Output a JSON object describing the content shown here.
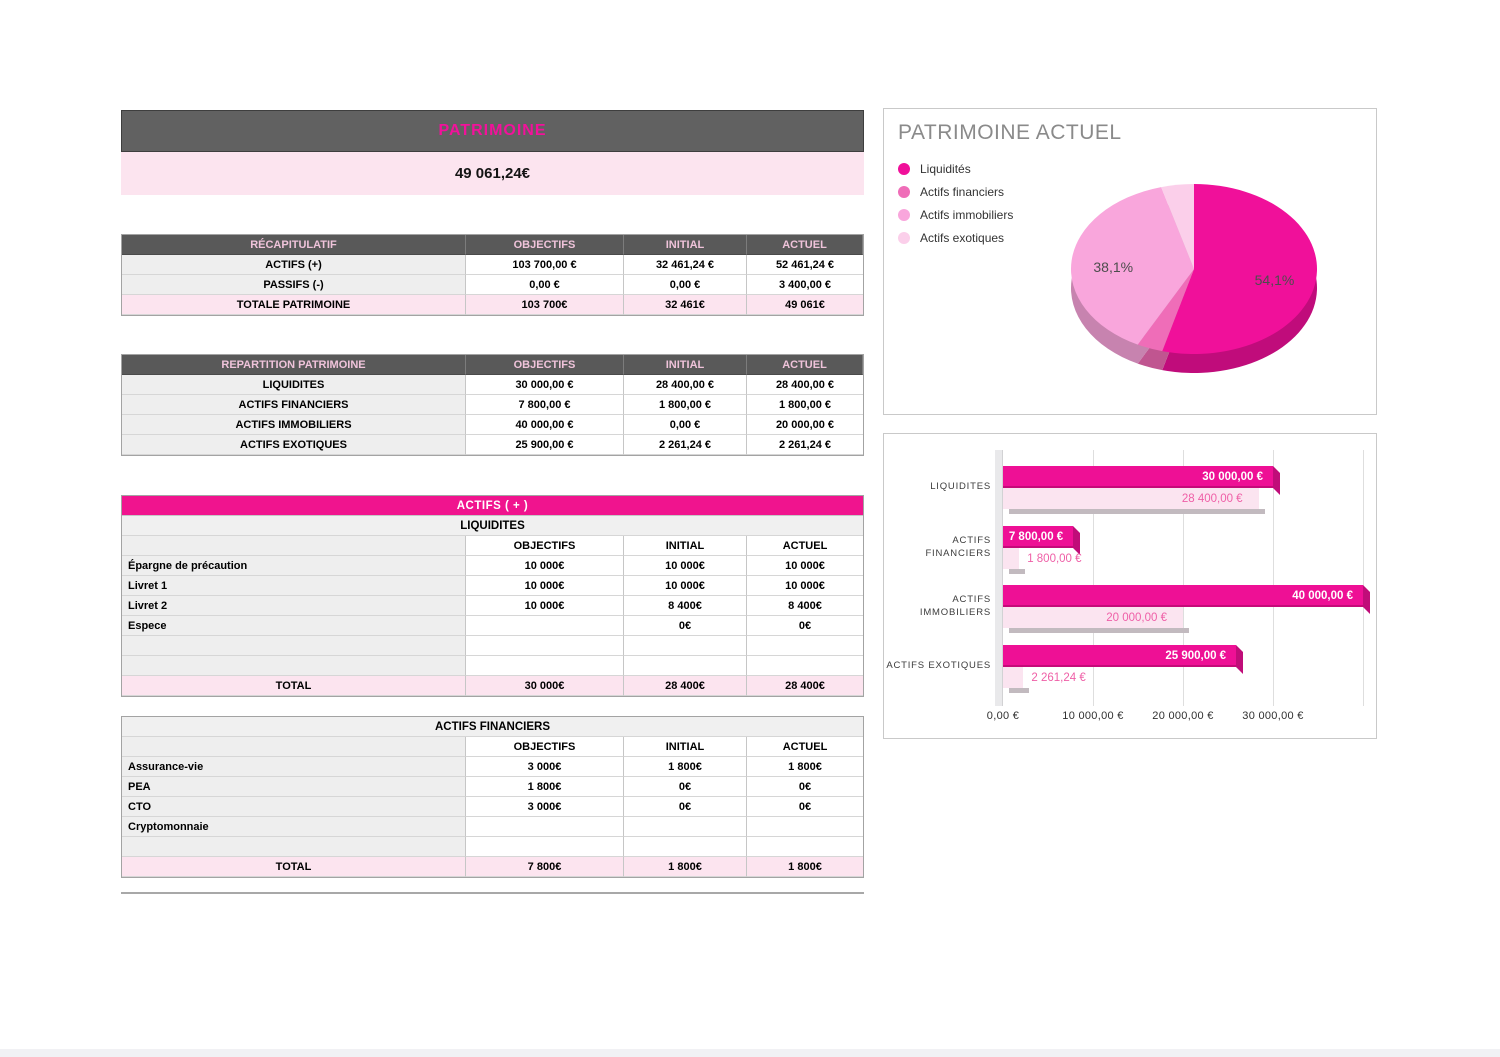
{
  "banner": {
    "title": "PATRIMOINE",
    "total": "49 061,24€"
  },
  "tables": {
    "recap": {
      "rows": [
        {
          "type": "header",
          "cells": [
            "RÉCAPITULATIF",
            "OBJECTIFS",
            "INITIAL",
            "ACTUEL"
          ]
        },
        {
          "type": "data",
          "cells": [
            "ACTIFS (+)",
            "103 700,00 €",
            "32 461,24 €",
            "52 461,24 €"
          ]
        },
        {
          "type": "data",
          "cells": [
            "PASSIFS (-)",
            "0,00 €",
            "0,00 €",
            "3 400,00 €"
          ]
        },
        {
          "type": "total",
          "cells": [
            "TOTALE PATRIMOINE",
            "103 700€",
            "32 461€",
            "49 061€"
          ]
        }
      ]
    },
    "repartition": {
      "rows": [
        {
          "type": "header",
          "cells": [
            "REPARTITION PATRIMOINE",
            "OBJECTIFS",
            "INITIAL",
            "ACTUEL"
          ]
        },
        {
          "type": "data",
          "cells": [
            "LIQUIDITES",
            "30 000,00 €",
            "28 400,00 €",
            "28 400,00 €"
          ]
        },
        {
          "type": "data",
          "cells": [
            "ACTIFS FINANCIERS",
            "7 800,00 €",
            "1 800,00 €",
            "1 800,00 €"
          ]
        },
        {
          "type": "data",
          "cells": [
            "ACTIFS IMMOBILIERS",
            "40 000,00 €",
            "0,00 €",
            "20 000,00 €"
          ]
        },
        {
          "type": "data",
          "cells": [
            "ACTIFS EXOTIQUES",
            "25 900,00 €",
            "2 261,24 €",
            "2 261,24 €"
          ]
        }
      ]
    },
    "actifs_plus": {
      "rows": [
        {
          "type": "title",
          "text": "ACTIFS ( + )"
        },
        {
          "type": "subtitle",
          "text": "LIQUIDITES"
        },
        {
          "type": "colheader",
          "cells": [
            "",
            "OBJECTIFS",
            "INITIAL",
            "ACTUEL"
          ]
        },
        {
          "type": "data",
          "cells": [
            "Épargne de précaution",
            "10 000€",
            "10 000€",
            "10 000€"
          ]
        },
        {
          "type": "data",
          "cells": [
            "Livret 1",
            "10 000€",
            "10 000€",
            "10 000€"
          ]
        },
        {
          "type": "data",
          "cells": [
            "Livret 2",
            "10 000€",
            "8 400€",
            "8 400€"
          ]
        },
        {
          "type": "data",
          "cells": [
            "Espece",
            "",
            "0€",
            "0€"
          ]
        },
        {
          "type": "data",
          "cells": [
            "",
            "",
            "",
            ""
          ]
        },
        {
          "type": "data",
          "cells": [
            "",
            "",
            "",
            ""
          ]
        },
        {
          "type": "total",
          "cells": [
            "TOTAL",
            "30 000€",
            "28 400€",
            "28 400€"
          ]
        }
      ]
    },
    "actifs_financiers": {
      "rows": [
        {
          "type": "subtitle",
          "text": "ACTIFS FINANCIERS"
        },
        {
          "type": "colheader",
          "cells": [
            "",
            "OBJECTIFS",
            "INITIAL",
            "ACTUEL"
          ]
        },
        {
          "type": "data",
          "cells": [
            "Assurance-vie",
            "3 000€",
            "1 800€",
            "1 800€"
          ]
        },
        {
          "type": "data",
          "cells": [
            "PEA",
            "1 800€",
            "0€",
            "0€"
          ]
        },
        {
          "type": "data",
          "cells": [
            "CTO",
            "3 000€",
            "0€",
            "0€"
          ]
        },
        {
          "type": "data",
          "cells": [
            "Cryptomonnaie",
            "",
            "",
            ""
          ]
        },
        {
          "type": "data",
          "cells": [
            "",
            "",
            "",
            ""
          ]
        },
        {
          "type": "total",
          "cells": [
            "TOTAL",
            "7 800€",
            "1 800€",
            "1 800€"
          ]
        }
      ]
    }
  },
  "chart_data": [
    {
      "type": "pie",
      "title": "PATRIMOINE ACTUEL",
      "legend": [
        "Liquidités",
        "Actifs financiers",
        "Actifs immobiliers",
        "Actifs exotiques"
      ],
      "slices": [
        {
          "label": "Liquidités",
          "pct": 54.1,
          "display": "54,1%"
        },
        {
          "label": "Actifs financiers",
          "pct": 3.4,
          "display": ""
        },
        {
          "label": "Actifs immobiliers",
          "pct": 38.1,
          "display": "38,1%"
        },
        {
          "label": "Actifs exotiques",
          "pct": 4.3,
          "display": ""
        }
      ],
      "colors": [
        "#F0109A",
        "#EF6DB8",
        "#F9A6DC",
        "#FBCFEA"
      ],
      "rim_colors": [
        "#C00C7B",
        "#C05590",
        "#C783AF",
        "#C9A2BB"
      ],
      "legend_position": "left"
    },
    {
      "type": "bar",
      "orientation": "horizontal",
      "categories": [
        "LIQUIDITES",
        "ACTIFS FINANCIERS",
        "ACTIFS IMMOBILIERS",
        "ACTIFS EXOTIQUES"
      ],
      "series": [
        {
          "color": "#EE1095",
          "values": [
            30000,
            7800,
            40000,
            25900
          ],
          "labels": [
            "30 000,00 €",
            "7 800,00 €",
            "40 000,00 €",
            "25 900,00 €"
          ]
        },
        {
          "color": "#FBE4F0",
          "values": [
            28400,
            1800,
            20000,
            2261.24
          ],
          "labels": [
            "28 400,00 €",
            "1 800,00 €",
            "20 000,00 €",
            "2 261,24 €"
          ]
        }
      ],
      "x_ticks": [
        "0,00 €",
        "10 000,00 €",
        "20 000,00 €",
        "30 000,00 €"
      ],
      "xlim": [
        0,
        40000
      ],
      "grid": true
    }
  ],
  "colors": {
    "accent_magenta": "#F0148E",
    "header_gray": "#595959",
    "header_text_pink": "#EFC3DA",
    "row_pink": "#FCE4EF",
    "label_cell_gray": "#EEEEEE",
    "bar_dark": "#EE1095",
    "bar_light": "#FBE4F0",
    "bar_light_text": "#EF5FA7"
  }
}
